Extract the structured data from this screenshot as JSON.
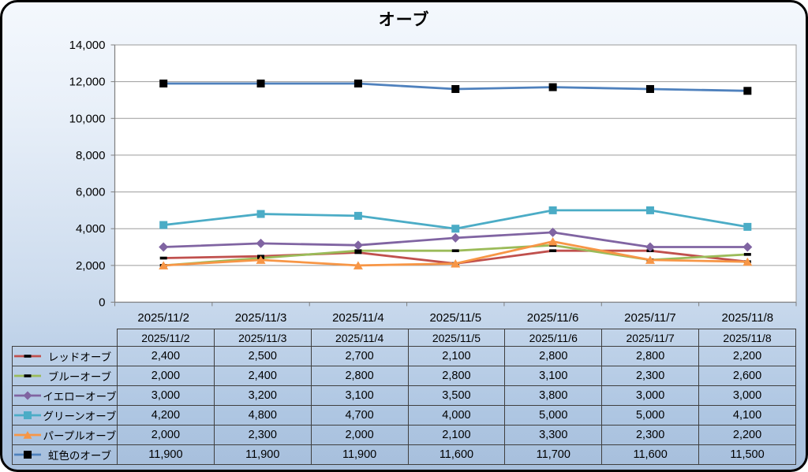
{
  "window": {
    "border_color": "#000000",
    "background_top": "#f4f8fd",
    "background_bottom": "#a7bfdc"
  },
  "chart_data": {
    "type": "line",
    "title": "オーブ",
    "categories": [
      "2025/11/2",
      "2025/11/3",
      "2025/11/4",
      "2025/11/5",
      "2025/11/6",
      "2025/11/7",
      "2025/11/8"
    ],
    "series": [
      {
        "name": "レッドオーブ",
        "color": "#C0504D",
        "marker": "dash",
        "marker_color": "#000000",
        "values": [
          2400,
          2500,
          2700,
          2100,
          2800,
          2800,
          2200
        ]
      },
      {
        "name": "ブルーオーブ",
        "color": "#9BBB59",
        "marker": "dash",
        "marker_color": "#000000",
        "values": [
          2000,
          2400,
          2800,
          2800,
          3100,
          2300,
          2600
        ]
      },
      {
        "name": "イエローオーブ",
        "color": "#8064A2",
        "marker": "diamond",
        "marker_color": "#8064A2",
        "values": [
          3000,
          3200,
          3100,
          3500,
          3800,
          3000,
          3000
        ]
      },
      {
        "name": "グリーンオーブ",
        "color": "#4BACC6",
        "marker": "square",
        "marker_color": "#4BACC6",
        "values": [
          4200,
          4800,
          4700,
          4000,
          5000,
          5000,
          4100
        ]
      },
      {
        "name": "パープルオーブ",
        "color": "#F79646",
        "marker": "triangle",
        "marker_color": "#F79646",
        "values": [
          2000,
          2300,
          2000,
          2100,
          3300,
          2300,
          2200
        ]
      },
      {
        "name": "虹色のオーブ",
        "color": "#4F81BD",
        "marker": "square",
        "marker_color": "#000000",
        "values": [
          11900,
          11900,
          11900,
          11600,
          11700,
          11600,
          11500
        ]
      }
    ],
    "ylim": [
      0,
      14000
    ],
    "ytick_step": 2000,
    "ytick_labels": [
      "0",
      "2,000",
      "4,000",
      "6,000",
      "8,000",
      "10,000",
      "12,000",
      "14,000"
    ],
    "grid": true,
    "legend_position": "data-table-left",
    "colors": {
      "plot_background": "#ffffff",
      "gridline": "#9b9b9b",
      "axis_line": "#7f7f7f",
      "table_border": "#3f3f3f",
      "text": "#000000"
    }
  }
}
